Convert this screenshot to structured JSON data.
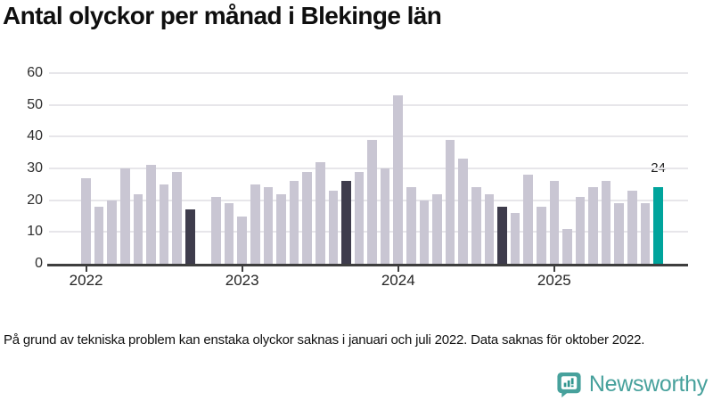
{
  "chart_data": {
    "type": "bar",
    "title": "Antal olyckor per månad i Blekinge län",
    "xlabel": "",
    "ylabel": "",
    "ylim": [
      0,
      60
    ],
    "y_ticks": [
      0,
      10,
      20,
      30,
      40,
      50,
      60
    ],
    "x_tick_labels": [
      "2022",
      "2023",
      "2024",
      "2025"
    ],
    "grid": "horizontal",
    "legend": "none",
    "annotation": {
      "label": "24",
      "month": "2025-09"
    },
    "series": [
      {
        "name": "Antal olyckor",
        "points": [
          {
            "month": "2022-01",
            "value": 27,
            "style": "default"
          },
          {
            "month": "2022-02",
            "value": 18,
            "style": "default"
          },
          {
            "month": "2022-03",
            "value": 20,
            "style": "default"
          },
          {
            "month": "2022-04",
            "value": 30,
            "style": "default"
          },
          {
            "month": "2022-05",
            "value": 22,
            "style": "default"
          },
          {
            "month": "2022-06",
            "value": 31,
            "style": "default"
          },
          {
            "month": "2022-07",
            "value": 25,
            "style": "default"
          },
          {
            "month": "2022-08",
            "value": 29,
            "style": "default"
          },
          {
            "month": "2022-09",
            "value": 17,
            "style": "dark"
          },
          {
            "month": "2022-10",
            "value": null,
            "style": "missing"
          },
          {
            "month": "2022-11",
            "value": 21,
            "style": "default"
          },
          {
            "month": "2022-12",
            "value": 19,
            "style": "default"
          },
          {
            "month": "2023-01",
            "value": 15,
            "style": "default"
          },
          {
            "month": "2023-02",
            "value": 25,
            "style": "default"
          },
          {
            "month": "2023-03",
            "value": 24,
            "style": "default"
          },
          {
            "month": "2023-04",
            "value": 22,
            "style": "default"
          },
          {
            "month": "2023-05",
            "value": 26,
            "style": "default"
          },
          {
            "month": "2023-06",
            "value": 29,
            "style": "default"
          },
          {
            "month": "2023-07",
            "value": 32,
            "style": "default"
          },
          {
            "month": "2023-08",
            "value": 23,
            "style": "default"
          },
          {
            "month": "2023-09",
            "value": 26,
            "style": "dark"
          },
          {
            "month": "2023-10",
            "value": 29,
            "style": "default"
          },
          {
            "month": "2023-11",
            "value": 39,
            "style": "default"
          },
          {
            "month": "2023-12",
            "value": 30,
            "style": "default"
          },
          {
            "month": "2024-01",
            "value": 53,
            "style": "default"
          },
          {
            "month": "2024-02",
            "value": 24,
            "style": "default"
          },
          {
            "month": "2024-03",
            "value": 20,
            "style": "default"
          },
          {
            "month": "2024-04",
            "value": 22,
            "style": "default"
          },
          {
            "month": "2024-05",
            "value": 39,
            "style": "default"
          },
          {
            "month": "2024-06",
            "value": 33,
            "style": "default"
          },
          {
            "month": "2024-07",
            "value": 24,
            "style": "default"
          },
          {
            "month": "2024-08",
            "value": 22,
            "style": "default"
          },
          {
            "month": "2024-09",
            "value": 18,
            "style": "dark"
          },
          {
            "month": "2024-10",
            "value": 16,
            "style": "default"
          },
          {
            "month": "2024-11",
            "value": 28,
            "style": "default"
          },
          {
            "month": "2024-12",
            "value": 18,
            "style": "default"
          },
          {
            "month": "2025-01",
            "value": 26,
            "style": "default"
          },
          {
            "month": "2025-02",
            "value": 11,
            "style": "default"
          },
          {
            "month": "2025-03",
            "value": 21,
            "style": "default"
          },
          {
            "month": "2025-04",
            "value": 24,
            "style": "default"
          },
          {
            "month": "2025-05",
            "value": 26,
            "style": "default"
          },
          {
            "month": "2025-06",
            "value": 19,
            "style": "default"
          },
          {
            "month": "2025-07",
            "value": 23,
            "style": "default"
          },
          {
            "month": "2025-08",
            "value": 19,
            "style": "default"
          },
          {
            "month": "2025-09",
            "value": 24,
            "style": "highlight"
          }
        ]
      }
    ]
  },
  "colors": {
    "bar_default": "#c9c6d3",
    "bar_dark": "#3e3c4c",
    "bar_highlight": "#00a49c",
    "gridline": "#e7e6ea",
    "axis": "#3e3e3e",
    "logo_teal": "#47a19c"
  },
  "footnote": {
    "text": "På grund av tekniska problem kan enstaka olyckor saknas i januari och juli 2022. Data saknas för oktober 2022."
  },
  "logo": {
    "text": "Newsworthy"
  }
}
